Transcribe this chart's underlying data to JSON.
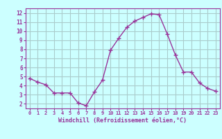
{
  "x": [
    0,
    1,
    2,
    3,
    4,
    5,
    6,
    7,
    8,
    9,
    10,
    11,
    12,
    13,
    14,
    15,
    16,
    17,
    18,
    19,
    20,
    21,
    22,
    23
  ],
  "y": [
    4.8,
    4.4,
    4.1,
    3.2,
    3.2,
    3.2,
    2.1,
    1.8,
    3.3,
    4.6,
    7.9,
    9.2,
    10.4,
    11.1,
    11.5,
    11.9,
    11.8,
    9.7,
    7.4,
    5.5,
    5.5,
    4.3,
    3.7,
    3.4
  ],
  "line_color": "#993399",
  "marker_color": "#993399",
  "bg_color": "#ccffff",
  "grid_color": "#aacccc",
  "xlabel": "Windchill (Refroidissement éolien,°C)",
  "xlabel_color": "#993399",
  "tick_color": "#993399",
  "spine_color": "#993399",
  "xlim": [
    -0.5,
    23.5
  ],
  "ylim": [
    1.5,
    12.5
  ],
  "yticks": [
    2,
    3,
    4,
    5,
    6,
    7,
    8,
    9,
    10,
    11,
    12
  ],
  "xticks": [
    0,
    1,
    2,
    3,
    4,
    5,
    6,
    7,
    8,
    9,
    10,
    11,
    12,
    13,
    14,
    15,
    16,
    17,
    18,
    19,
    20,
    21,
    22,
    23
  ],
  "xtick_labels": [
    "0",
    "1",
    "2",
    "3",
    "4",
    "5",
    "6",
    "7",
    "8",
    "9",
    "10",
    "11",
    "12",
    "13",
    "14",
    "15",
    "16",
    "17",
    "18",
    "19",
    "20",
    "21",
    "22",
    "23"
  ]
}
